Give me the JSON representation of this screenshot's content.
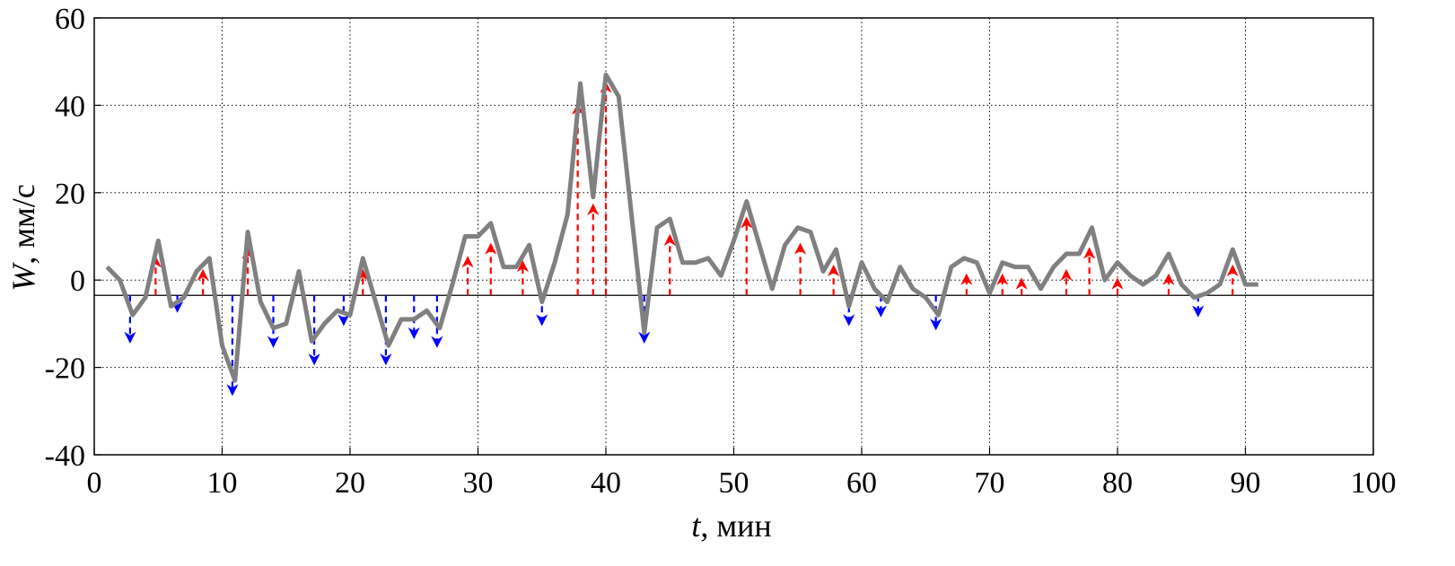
{
  "chart_data": {
    "type": "line",
    "title": "",
    "xlabel_var": "t",
    "xlabel_unit": ", мин",
    "ylabel_var": "W",
    "ylabel_unit": ", мм/с",
    "xlim": [
      0,
      100
    ],
    "ylim": [
      -40,
      60
    ],
    "xticks": [
      0,
      10,
      20,
      30,
      40,
      50,
      60,
      70,
      80,
      90,
      100
    ],
    "yticks": [
      -40,
      -20,
      0,
      20,
      40,
      60
    ],
    "grid": true,
    "grid_style": "dotted",
    "reference_line_y": -3.5,
    "series": [
      {
        "color": "#808080",
        "x": [
          1,
          2,
          3,
          4,
          5,
          6,
          7,
          8,
          9,
          10,
          11,
          12,
          13,
          14,
          15,
          16,
          17,
          18,
          19,
          20,
          21,
          22,
          23,
          24,
          25,
          26,
          27,
          28,
          29,
          30,
          31,
          32,
          33,
          34,
          35,
          36,
          37,
          38,
          39,
          40,
          41,
          42,
          43,
          44,
          45,
          46,
          47,
          48,
          49,
          50,
          51,
          52,
          53,
          54,
          55,
          56,
          57,
          58,
          59,
          60,
          61,
          62,
          63,
          64,
          65,
          66,
          67,
          68,
          69,
          70,
          71,
          72,
          73,
          74,
          75,
          76,
          77,
          78,
          79,
          80,
          81,
          82,
          83,
          84,
          85,
          86,
          87,
          88,
          89,
          90,
          91
        ],
        "y": [
          3,
          0,
          -8,
          -4,
          9,
          -6,
          -4,
          2,
          5,
          -15,
          -23,
          11,
          -5,
          -11,
          -10,
          2,
          -14,
          -10,
          -7,
          -8,
          5,
          -5,
          -15,
          -9,
          -9,
          -7,
          -11,
          -1,
          10,
          10,
          13,
          3,
          3,
          8,
          -5,
          4,
          15,
          45,
          19,
          47,
          42,
          15,
          -12,
          12,
          14,
          4,
          4,
          5,
          1,
          9,
          18,
          8,
          -2,
          8,
          12,
          11,
          2,
          7,
          -6,
          4,
          -2,
          -5,
          3,
          -2,
          -4,
          -8,
          3,
          5,
          4,
          -3,
          4,
          3,
          3,
          -2,
          3,
          6,
          6,
          12,
          0,
          4,
          1,
          -1,
          1,
          6,
          -1,
          -4,
          -3,
          -1,
          7,
          -1,
          -1
        ]
      }
    ],
    "up_arrows": {
      "color": "#ff0000",
      "points": [
        [
          4.8,
          5
        ],
        [
          8.5,
          2
        ],
        [
          12,
          7
        ],
        [
          21,
          2
        ],
        [
          29.2,
          5
        ],
        [
          31,
          8
        ],
        [
          33.5,
          4
        ],
        [
          37.8,
          40
        ],
        [
          39,
          17
        ],
        [
          40,
          45
        ],
        [
          45,
          10
        ],
        [
          51,
          14
        ],
        [
          55.2,
          8
        ],
        [
          57.8,
          3
        ],
        [
          68.2,
          1
        ],
        [
          71,
          1
        ],
        [
          72.5,
          0
        ],
        [
          76,
          2
        ],
        [
          77.8,
          7
        ],
        [
          80,
          0
        ],
        [
          84,
          1
        ],
        [
          89,
          3
        ]
      ]
    },
    "down_arrows": {
      "color": "#0000ff",
      "points": [
        [
          2.8,
          -14
        ],
        [
          6.5,
          -7
        ],
        [
          10.8,
          -26
        ],
        [
          14,
          -15
        ],
        [
          17.2,
          -19
        ],
        [
          19.5,
          -10
        ],
        [
          22.8,
          -19
        ],
        [
          25,
          -13
        ],
        [
          26.8,
          -15
        ],
        [
          35,
          -10
        ],
        [
          43,
          -14
        ],
        [
          59,
          -10
        ],
        [
          61.5,
          -8
        ],
        [
          65.8,
          -11
        ],
        [
          86.3,
          -8
        ]
      ]
    }
  }
}
